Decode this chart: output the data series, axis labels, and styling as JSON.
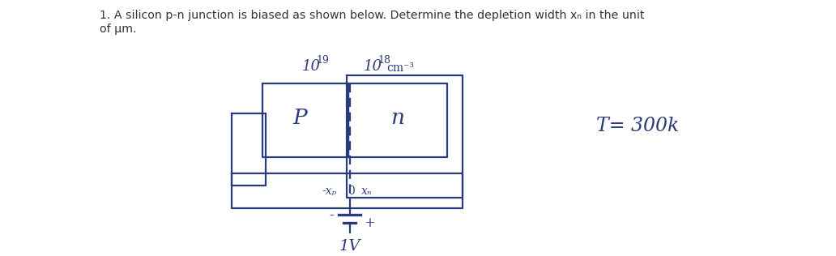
{
  "bg_color": "#ffffff",
  "text_color": "#2b3a7a",
  "title_line1": "1. A silicon p-n junction is biased as shown below. Determine the depletion width xₙ in the unit",
  "title_line2": "of μm.",
  "label_p_exp": "19",
  "label_p_base": "10",
  "label_n_exp": "18",
  "label_n_base": "10",
  "label_n_unit": "cm⁻³",
  "label_P": "P",
  "label_n": "n",
  "label_xp": "-xₚ",
  "label_o": "0",
  "label_xn": "xₙ",
  "label_minus": "-",
  "label_plus": "+",
  "label_1V": "1V",
  "label_T": "T= 300k",
  "figsize": [
    10.32,
    3.16
  ],
  "dpi": 100
}
